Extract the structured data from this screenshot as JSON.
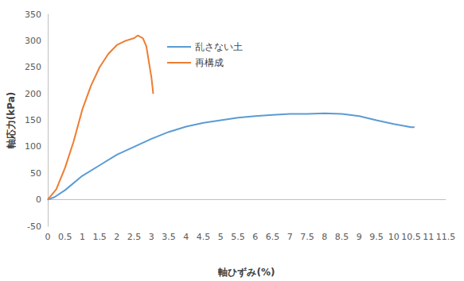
{
  "chart_data": {
    "type": "line",
    "x_label": "軸ひずみ(%)",
    "y_label": "軸応力(kPa)",
    "xlim": [
      0,
      11.5
    ],
    "xticks": [
      0,
      0.5,
      1,
      1.5,
      2,
      2.5,
      3,
      3.5,
      4,
      4.5,
      5,
      5.5,
      6,
      6.5,
      7,
      7.5,
      8,
      8.5,
      9,
      9.5,
      10,
      10.5,
      11,
      11.5
    ],
    "ylim": [
      -50,
      350
    ],
    "yticks": [
      -50,
      0,
      50,
      100,
      150,
      200,
      250,
      300,
      350
    ],
    "grid": false,
    "legend": "top",
    "series": [
      {
        "name": "乱さない土",
        "color": "#5b9bd5",
        "x": [
          0,
          0.2,
          0.5,
          1,
          1.5,
          2,
          2.5,
          3,
          3.5,
          4,
          4.5,
          5,
          5.5,
          6,
          6.5,
          7,
          7.5,
          8,
          8.5,
          9,
          9.5,
          10,
          10.5,
          10.6
        ],
        "values": [
          0,
          5,
          18,
          45,
          65,
          85,
          100,
          115,
          128,
          138,
          145,
          150,
          155,
          158,
          160,
          162,
          162,
          163,
          162,
          158,
          150,
          143,
          137,
          137
        ]
      },
      {
        "name": "再構成",
        "color": "#ed7d31",
        "x": [
          0,
          0.25,
          0.5,
          0.75,
          1,
          1.25,
          1.5,
          1.75,
          2,
          2.25,
          2.5,
          2.6,
          2.75,
          2.85,
          2.9,
          3,
          3.05
        ],
        "values": [
          0,
          20,
          60,
          110,
          170,
          215,
          250,
          275,
          292,
          300,
          305,
          310,
          305,
          290,
          270,
          230,
          200
        ]
      }
    ]
  }
}
